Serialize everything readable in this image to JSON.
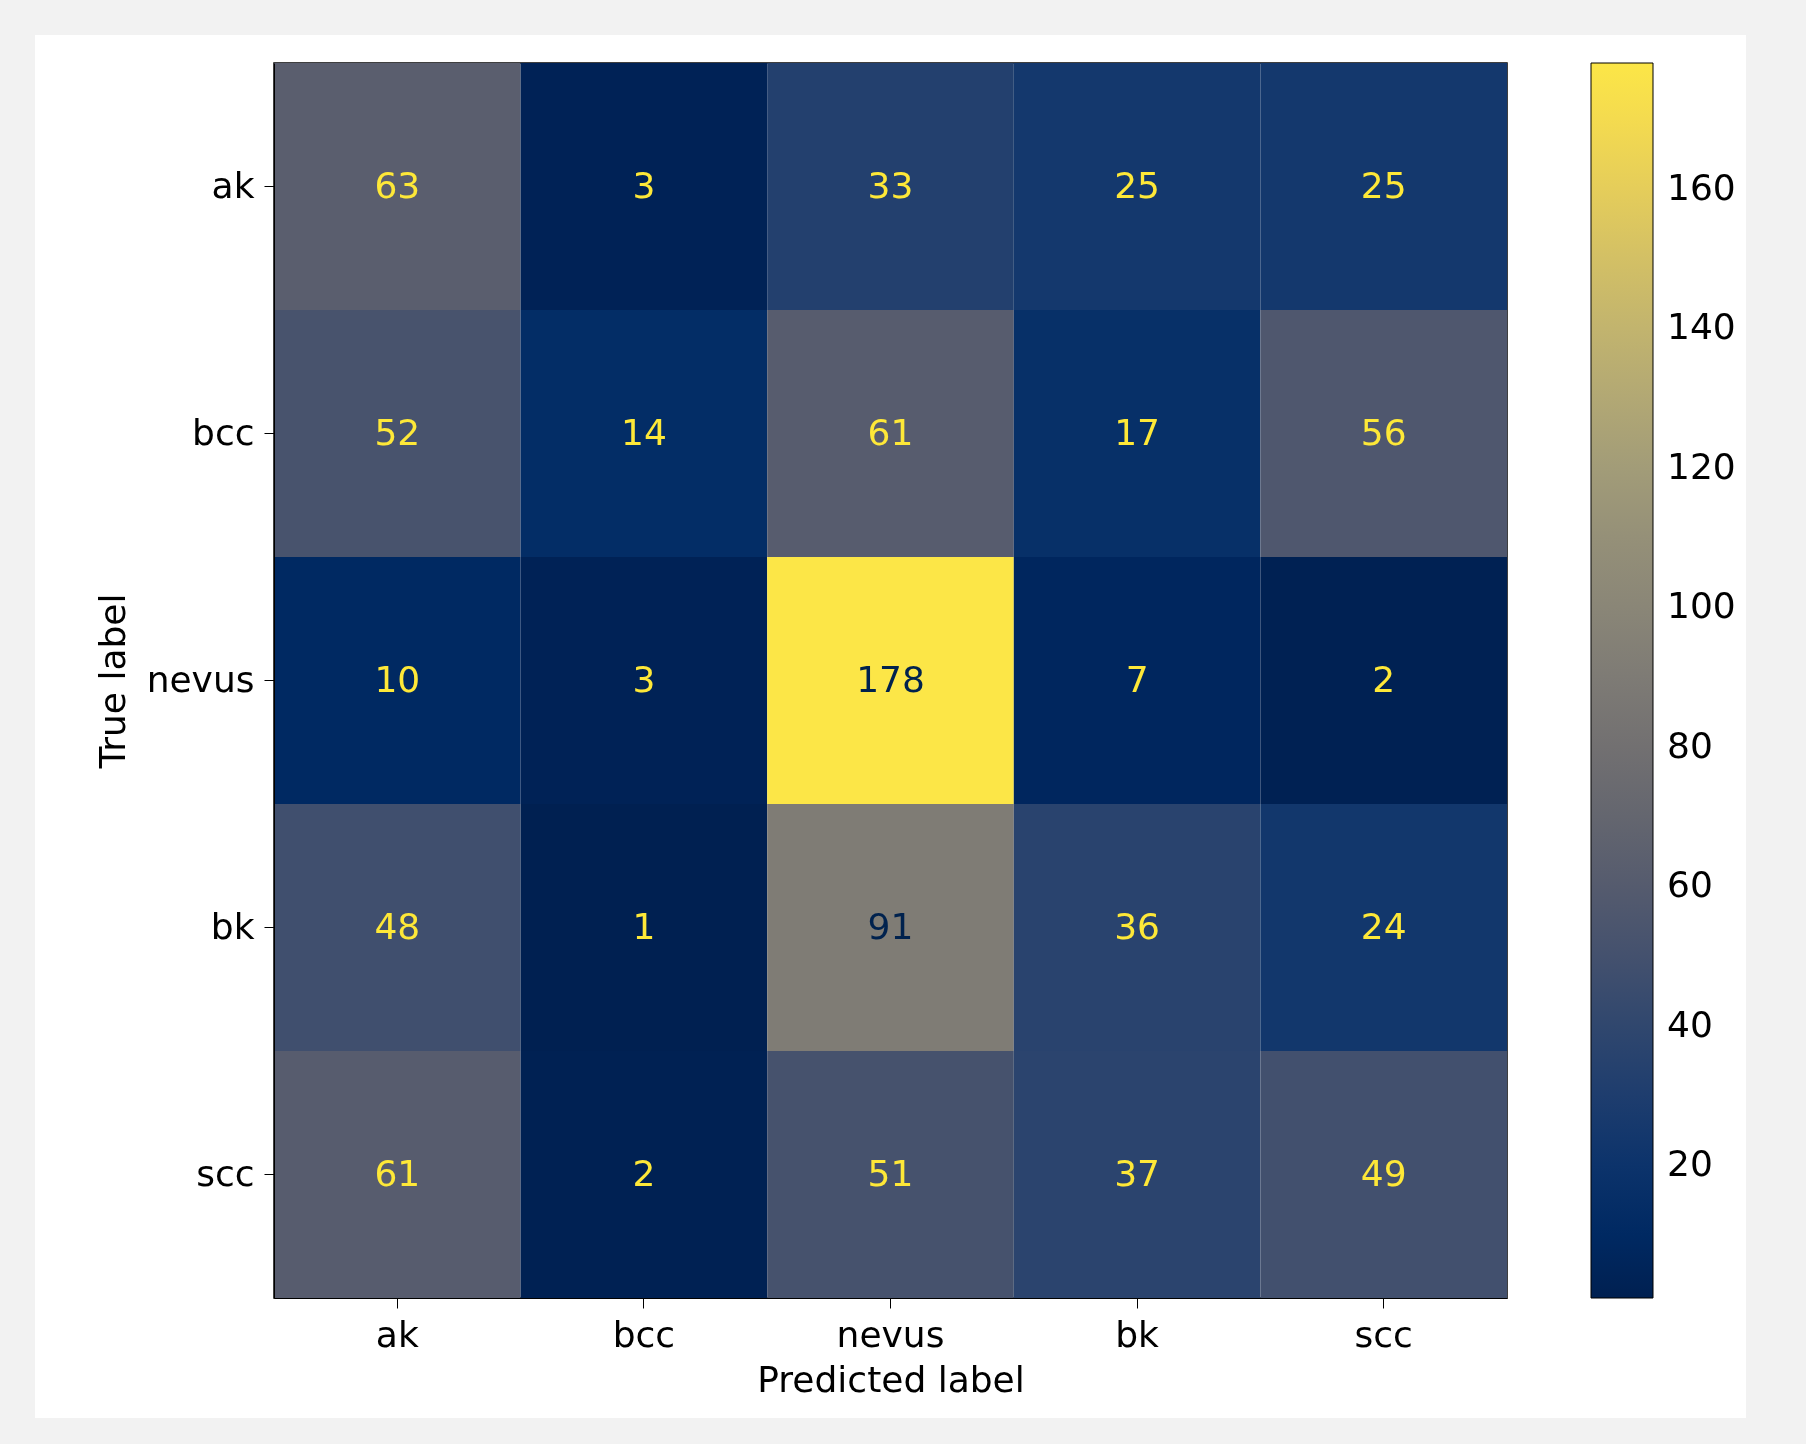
{
  "chart_data": {
    "type": "heatmap",
    "xlabel": "Predicted label",
    "ylabel": "True label",
    "categories": [
      "ak",
      "bcc",
      "nevus",
      "bk",
      "scc"
    ],
    "y_categories": [
      "ak",
      "bcc",
      "nevus",
      "bk",
      "scc"
    ],
    "cells": [
      [
        63,
        3,
        33,
        25,
        25
      ],
      [
        52,
        14,
        61,
        17,
        56
      ],
      [
        10,
        3,
        178,
        7,
        2
      ],
      [
        48,
        1,
        91,
        36,
        24
      ],
      [
        61,
        2,
        51,
        37,
        49
      ]
    ],
    "data_labels": true,
    "clim": [
      1,
      178
    ],
    "cticks": [
      20,
      40,
      60,
      80,
      100,
      120,
      140,
      160
    ]
  }
}
